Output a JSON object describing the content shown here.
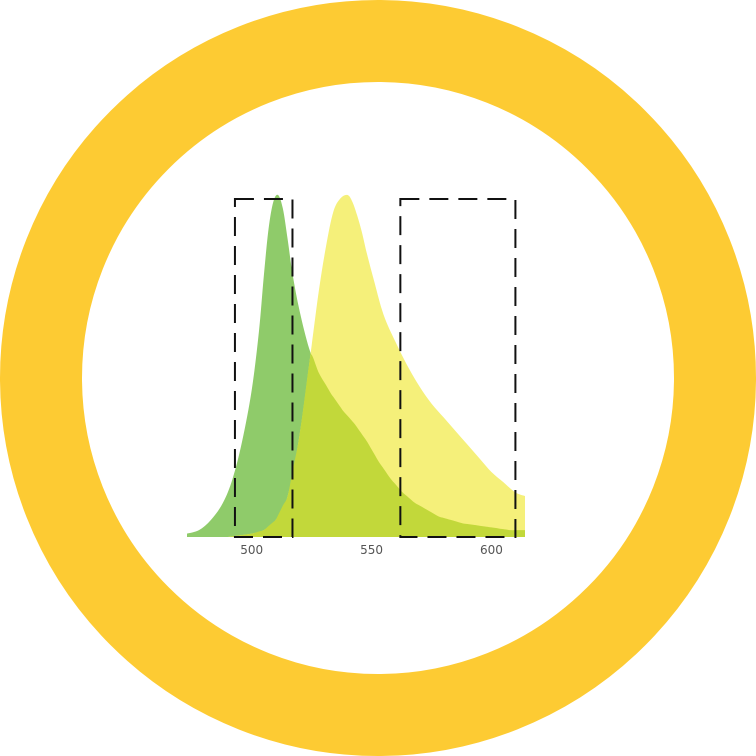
{
  "colors": {
    "ring": "#FDCB33",
    "green_emission": "#8FCB6A",
    "yellow_emission": "#F5F07A",
    "overlap": "#C2D83A",
    "filter_window": "#111111",
    "tick_text": "#555555"
  },
  "chart_data": {
    "type": "area",
    "title": "",
    "xlabel": "",
    "ylabel": "",
    "xlim": [
      473,
      614
    ],
    "ylim": [
      0,
      1
    ],
    "x_ticks": [
      500,
      550,
      600
    ],
    "tick_labels": [
      "500",
      "550",
      "600"
    ],
    "grid": false,
    "series": [
      {
        "color": "#8FCB6A",
        "x": [
          473,
          478,
          483,
          488,
          492,
          496,
          500,
          503,
          505,
          507,
          509,
          511,
          513,
          515,
          517,
          520,
          524,
          528,
          533,
          538,
          543,
          548,
          553,
          558,
          563,
          568,
          573,
          578,
          583,
          588,
          593,
          598,
          603,
          608,
          614
        ],
        "y": [
          0.01,
          0.02,
          0.05,
          0.1,
          0.17,
          0.28,
          0.43,
          0.6,
          0.76,
          0.9,
          0.98,
          1.0,
          0.96,
          0.87,
          0.77,
          0.66,
          0.55,
          0.48,
          0.42,
          0.37,
          0.33,
          0.28,
          0.22,
          0.17,
          0.13,
          0.1,
          0.08,
          0.06,
          0.05,
          0.04,
          0.035,
          0.03,
          0.025,
          0.02,
          0.02
        ]
      },
      {
        "color": "#F5F07A",
        "x": [
          490,
          495,
          500,
          505,
          510,
          515,
          520,
          525,
          528,
          531,
          534,
          537,
          540,
          542,
          544,
          546,
          548,
          551,
          555,
          560,
          565,
          570,
          575,
          580,
          585,
          590,
          595,
          600,
          605,
          610,
          614
        ],
        "y": [
          0.0,
          0.005,
          0.01,
          0.02,
          0.05,
          0.12,
          0.3,
          0.56,
          0.72,
          0.85,
          0.95,
          0.99,
          1.0,
          0.98,
          0.94,
          0.89,
          0.83,
          0.75,
          0.65,
          0.57,
          0.5,
          0.44,
          0.39,
          0.35,
          0.31,
          0.27,
          0.23,
          0.19,
          0.16,
          0.13,
          0.12
        ]
      }
    ],
    "filter_windows": [
      {
        "x_range": [
          493,
          517
        ]
      },
      {
        "x_range": [
          562,
          610
        ]
      }
    ]
  }
}
